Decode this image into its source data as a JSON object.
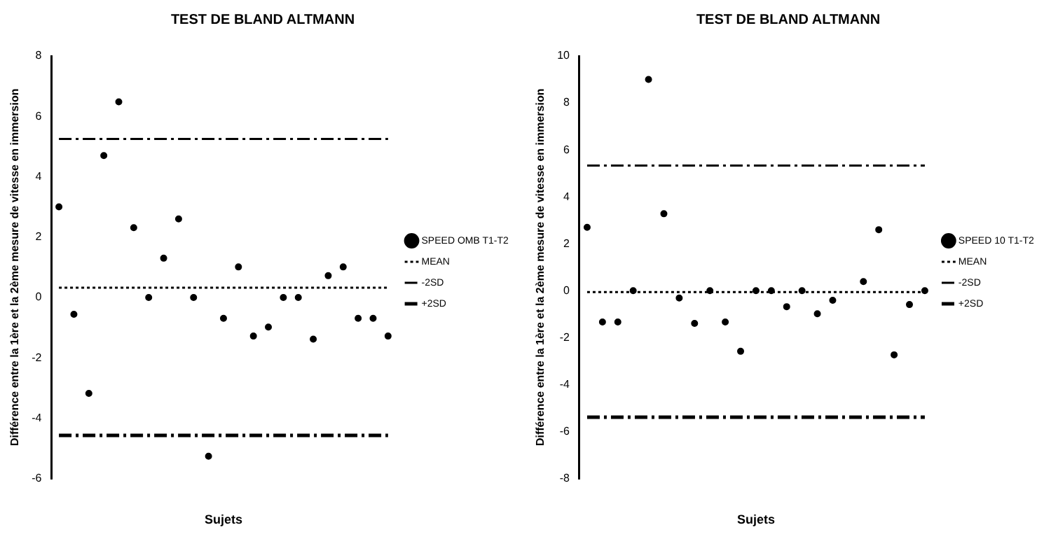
{
  "chart_data": [
    {
      "type": "scatter",
      "title": "TEST DE BLAND ALTMANN",
      "xlabel": "Sujets",
      "ylabel": "Différence entre la 1ère et la 2ème mesure de vitesse en immersion",
      "categories": [
        null,
        null,
        null,
        null,
        null,
        null,
        null,
        null,
        null,
        null,
        null,
        null,
        null,
        null,
        null,
        null,
        null,
        null,
        null,
        null,
        null,
        null,
        null
      ],
      "ylim": [
        -6,
        8
      ],
      "yticks": [
        -6,
        -4,
        -2,
        0,
        2,
        4,
        6,
        8
      ],
      "grid": false,
      "legend": "right",
      "series": [
        {
          "name": "SPEED OMB T1-T2",
          "type": "scatter",
          "marker": "circle",
          "color": "#000000",
          "values": [
            3.0,
            -0.56,
            -3.18,
            4.7,
            6.48,
            2.31,
            0,
            1.3,
            2.6,
            0,
            -5.26,
            -0.69,
            1.01,
            -1.28,
            -0.98,
            0,
            0,
            -1.38,
            0.72,
            1.01,
            -0.69,
            -0.69,
            -1.28
          ]
        },
        {
          "name": "MEAN",
          "type": "line",
          "line_style": "dotted",
          "color": "#000000",
          "values": [
            0.32,
            0.32,
            0.32,
            0.32,
            0.32,
            0.32,
            0.32,
            0.32,
            0.32,
            0.32,
            0.32,
            0.32,
            0.32,
            0.32,
            0.32,
            0.32,
            0.32,
            0.32,
            0.32,
            0.32,
            0.32,
            0.32,
            0.32
          ]
        },
        {
          "name": "-2SD",
          "type": "line",
          "line_style": "dashed",
          "color": "#000000",
          "values": [
            5.25,
            5.25,
            5.25,
            5.25,
            5.25,
            5.25,
            5.25,
            5.25,
            5.25,
            5.25,
            5.25,
            5.25,
            5.25,
            5.25,
            5.25,
            5.25,
            5.25,
            5.25,
            5.25,
            5.25,
            5.25,
            5.25,
            5.25
          ]
        },
        {
          "name": "+2SD",
          "type": "line",
          "line_style": "dashed",
          "color": "#000000",
          "values": [
            -4.57,
            -4.57,
            -4.57,
            -4.57,
            -4.57,
            -4.57,
            -4.57,
            -4.57,
            -4.57,
            -4.57,
            -4.57,
            -4.57,
            -4.57,
            -4.57,
            -4.57,
            -4.57,
            -4.57,
            -4.57,
            -4.57,
            -4.57,
            -4.57,
            -4.57,
            -4.57
          ]
        }
      ]
    },
    {
      "type": "scatter",
      "title": "TEST DE BLAND ALTMANN",
      "xlabel": "Sujets",
      "ylabel": "Différence entre la 1ère et la 2ème mesure de vitesse en immersion",
      "categories": [
        null,
        null,
        null,
        null,
        null,
        null,
        null,
        null,
        null,
        null,
        null,
        null,
        null,
        null,
        null,
        null,
        null,
        null,
        null,
        null,
        null,
        null,
        null
      ],
      "ylim": [
        -8,
        10
      ],
      "yticks": [
        -8,
        -6,
        -4,
        -2,
        0,
        2,
        4,
        6,
        8,
        10
      ],
      "grid": false,
      "legend": "right",
      "series": [
        {
          "name": "SPEED 10 T1-T2",
          "type": "scatter",
          "marker": "circle",
          "color": "#000000",
          "values": [
            2.7,
            -1.33,
            -1.33,
            0,
            9.0,
            3.28,
            -0.31,
            -1.39,
            0,
            -1.33,
            -2.58,
            0,
            0,
            -0.68,
            0,
            -0.98,
            -0.41,
            null,
            0.39,
            2.6,
            -2.73,
            -0.59,
            0
          ]
        },
        {
          "name": "MEAN",
          "type": "line",
          "line_style": "dotted",
          "color": "#000000",
          "values": [
            -0.06,
            -0.06,
            -0.06,
            -0.06,
            -0.06,
            -0.06,
            -0.06,
            -0.06,
            -0.06,
            -0.06,
            -0.06,
            -0.06,
            -0.06,
            -0.06,
            -0.06,
            -0.06,
            -0.06,
            -0.06,
            -0.06,
            -0.06,
            -0.06,
            -0.06,
            -0.06
          ]
        },
        {
          "name": "-2SD",
          "type": "line",
          "line_style": "dashed",
          "color": "#000000",
          "values": [
            5.33,
            5.33,
            5.33,
            5.33,
            5.33,
            5.33,
            5.33,
            5.33,
            5.33,
            5.33,
            5.33,
            5.33,
            5.33,
            5.33,
            5.33,
            5.33,
            5.33,
            5.33,
            5.33,
            5.33,
            5.33,
            5.33,
            5.33
          ]
        },
        {
          "name": "+2SD",
          "type": "line",
          "line_style": "dashed",
          "color": "#000000",
          "values": [
            -5.39,
            -5.39,
            -5.39,
            -5.39,
            -5.39,
            -5.39,
            -5.39,
            -5.39,
            -5.39,
            -5.39,
            -5.39,
            -5.39,
            -5.39,
            -5.39,
            -5.39,
            -5.39,
            -5.39,
            -5.39,
            -5.39,
            -5.39,
            -5.39,
            -5.39,
            -5.39
          ]
        }
      ]
    }
  ]
}
